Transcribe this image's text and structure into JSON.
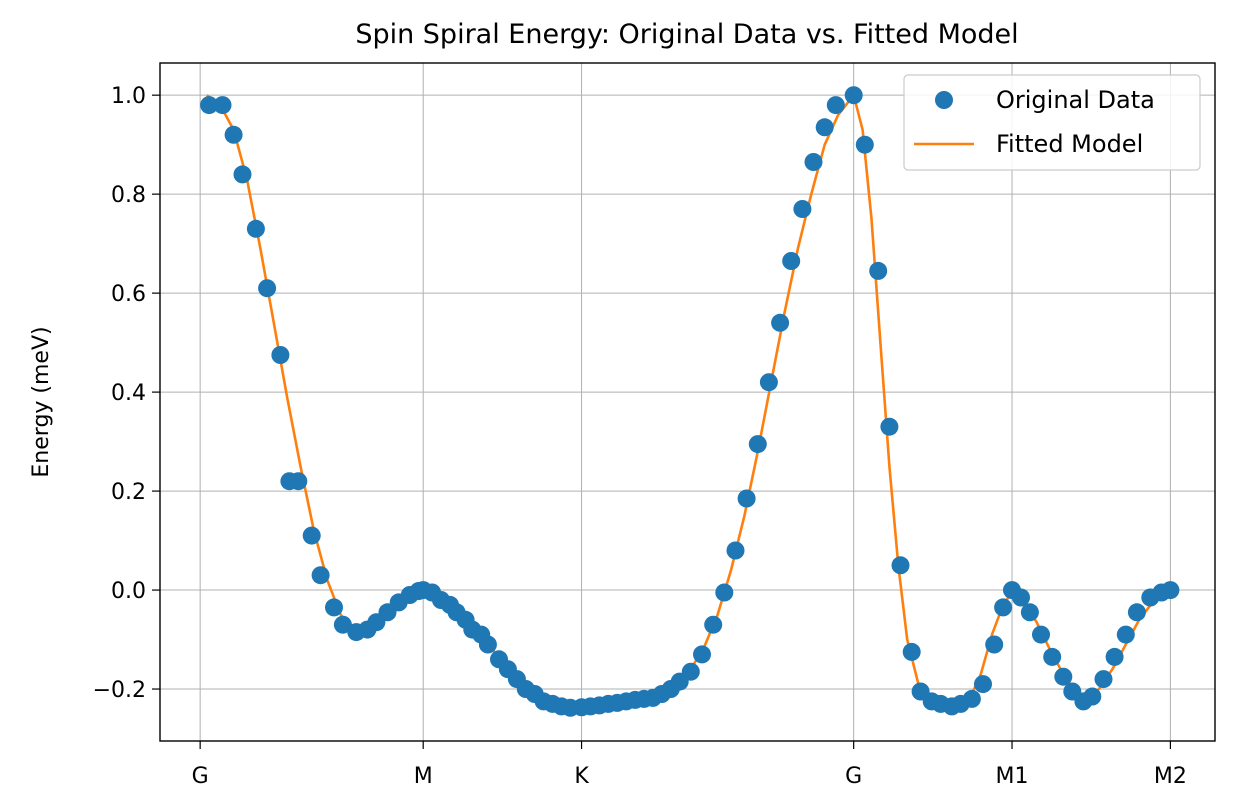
{
  "chart_data": {
    "type": "scatter",
    "title": "Spin Spiral Energy: Original Data vs. Fitted Model",
    "xlabel": "",
    "ylabel": "Energy (meV)",
    "x_ticks": [
      {
        "label": "G",
        "x": 0
      },
      {
        "label": "M",
        "x": 1
      },
      {
        "label": "K",
        "x": 1.71
      },
      {
        "label": "G",
        "x": 2.93
      },
      {
        "label": "M1",
        "x": 3.64
      },
      {
        "label": "M2",
        "x": 4.35
      }
    ],
    "xlim": [
      -0.18,
      4.55
    ],
    "ylim": [
      -0.305,
      1.065
    ],
    "y_ticks": [
      -0.2,
      0.0,
      0.2,
      0.4,
      0.6,
      0.8,
      1.0
    ],
    "y_tick_labels": [
      "−0.2",
      "0.0",
      "0.2",
      "0.4",
      "0.6",
      "0.8",
      "1.0"
    ],
    "grid": true,
    "legend_position": "top-right",
    "colors": {
      "original": "#1f77b4",
      "fitted": "#ff7f0e"
    },
    "series": [
      {
        "name": "Original Data",
        "style": "markers",
        "points": [
          [
            0.04,
            0.98
          ],
          [
            0.1,
            0.98
          ],
          [
            0.15,
            0.92
          ],
          [
            0.19,
            0.84
          ],
          [
            0.25,
            0.73
          ],
          [
            0.3,
            0.61
          ],
          [
            0.36,
            0.475
          ],
          [
            0.4,
            0.22
          ],
          [
            0.44,
            0.22
          ],
          [
            0.5,
            0.11
          ],
          [
            0.54,
            0.03
          ],
          [
            0.6,
            -0.035
          ],
          [
            0.64,
            -0.07
          ],
          [
            0.7,
            -0.085
          ],
          [
            0.75,
            -0.08
          ],
          [
            0.79,
            -0.065
          ],
          [
            0.84,
            -0.045
          ],
          [
            0.89,
            -0.025
          ],
          [
            0.94,
            -0.01
          ],
          [
            0.98,
            -0.002
          ],
          [
            1.0,
            0.0
          ],
          [
            1.04,
            -0.005
          ],
          [
            1.08,
            -0.02
          ],
          [
            1.12,
            -0.03
          ],
          [
            1.15,
            -0.045
          ],
          [
            1.19,
            -0.06
          ],
          [
            1.22,
            -0.08
          ],
          [
            1.26,
            -0.09
          ],
          [
            1.29,
            -0.11
          ],
          [
            1.34,
            -0.14
          ],
          [
            1.38,
            -0.16
          ],
          [
            1.42,
            -0.18
          ],
          [
            1.46,
            -0.2
          ],
          [
            1.5,
            -0.21
          ],
          [
            1.54,
            -0.225
          ],
          [
            1.58,
            -0.23
          ],
          [
            1.62,
            -0.235
          ],
          [
            1.66,
            -0.238
          ],
          [
            1.71,
            -0.237
          ],
          [
            1.75,
            -0.235
          ],
          [
            1.79,
            -0.233
          ],
          [
            1.83,
            -0.23
          ],
          [
            1.87,
            -0.228
          ],
          [
            1.91,
            -0.225
          ],
          [
            1.95,
            -0.222
          ],
          [
            1.99,
            -0.22
          ],
          [
            2.03,
            -0.218
          ],
          [
            2.07,
            -0.21
          ],
          [
            2.11,
            -0.2
          ],
          [
            2.15,
            -0.185
          ],
          [
            2.2,
            -0.165
          ],
          [
            2.25,
            -0.13
          ],
          [
            2.3,
            -0.07
          ],
          [
            2.35,
            -0.005
          ],
          [
            2.4,
            0.08
          ],
          [
            2.45,
            0.185
          ],
          [
            2.5,
            0.295
          ],
          [
            2.55,
            0.42
          ],
          [
            2.6,
            0.54
          ],
          [
            2.65,
            0.665
          ],
          [
            2.7,
            0.77
          ],
          [
            2.75,
            0.865
          ],
          [
            2.8,
            0.935
          ],
          [
            2.85,
            0.98
          ],
          [
            2.93,
            1.0
          ],
          [
            2.98,
            0.9
          ],
          [
            3.04,
            0.645
          ],
          [
            3.09,
            0.33
          ],
          [
            3.14,
            0.05
          ],
          [
            3.19,
            -0.125
          ],
          [
            3.23,
            -0.205
          ],
          [
            3.28,
            -0.225
          ],
          [
            3.32,
            -0.23
          ],
          [
            3.37,
            -0.235
          ],
          [
            3.41,
            -0.23
          ],
          [
            3.46,
            -0.22
          ],
          [
            3.51,
            -0.19
          ],
          [
            3.56,
            -0.11
          ],
          [
            3.6,
            -0.035
          ],
          [
            3.64,
            0.0
          ],
          [
            3.68,
            -0.015
          ],
          [
            3.72,
            -0.045
          ],
          [
            3.77,
            -0.09
          ],
          [
            3.82,
            -0.135
          ],
          [
            3.87,
            -0.175
          ],
          [
            3.91,
            -0.205
          ],
          [
            3.96,
            -0.225
          ],
          [
            4.0,
            -0.215
          ],
          [
            4.05,
            -0.18
          ],
          [
            4.1,
            -0.135
          ],
          [
            4.15,
            -0.09
          ],
          [
            4.2,
            -0.045
          ],
          [
            4.26,
            -0.015
          ],
          [
            4.31,
            -0.005
          ],
          [
            4.35,
            0.0
          ]
        ]
      },
      {
        "name": "Fitted Model",
        "style": "line",
        "points": [
          [
            0.03,
            1.0
          ],
          [
            0.09,
            0.98
          ],
          [
            0.15,
            0.93
          ],
          [
            0.21,
            0.83
          ],
          [
            0.27,
            0.69
          ],
          [
            0.33,
            0.54
          ],
          [
            0.39,
            0.39
          ],
          [
            0.45,
            0.25
          ],
          [
            0.51,
            0.12
          ],
          [
            0.57,
            0.02
          ],
          [
            0.63,
            -0.05
          ],
          [
            0.69,
            -0.08
          ],
          [
            0.75,
            -0.075
          ],
          [
            0.81,
            -0.055
          ],
          [
            0.87,
            -0.03
          ],
          [
            0.93,
            -0.012
          ],
          [
            1.0,
            -0.005
          ],
          [
            1.06,
            -0.012
          ],
          [
            1.12,
            -0.03
          ],
          [
            1.18,
            -0.055
          ],
          [
            1.24,
            -0.085
          ],
          [
            1.3,
            -0.115
          ],
          [
            1.36,
            -0.145
          ],
          [
            1.42,
            -0.175
          ],
          [
            1.48,
            -0.2
          ],
          [
            1.54,
            -0.22
          ],
          [
            1.6,
            -0.232
          ],
          [
            1.66,
            -0.239
          ],
          [
            1.71,
            -0.24
          ],
          [
            1.78,
            -0.237
          ],
          [
            1.86,
            -0.23
          ],
          [
            1.94,
            -0.222
          ],
          [
            2.02,
            -0.215
          ],
          [
            2.08,
            -0.205
          ],
          [
            2.14,
            -0.188
          ],
          [
            2.2,
            -0.16
          ],
          [
            2.26,
            -0.115
          ],
          [
            2.32,
            -0.05
          ],
          [
            2.38,
            0.04
          ],
          [
            2.44,
            0.15
          ],
          [
            2.5,
            0.28
          ],
          [
            2.56,
            0.42
          ],
          [
            2.62,
            0.56
          ],
          [
            2.68,
            0.69
          ],
          [
            2.74,
            0.8
          ],
          [
            2.8,
            0.9
          ],
          [
            2.86,
            0.96
          ],
          [
            2.93,
            1.0
          ],
          [
            2.97,
            0.93
          ],
          [
            3.01,
            0.75
          ],
          [
            3.05,
            0.5
          ],
          [
            3.09,
            0.25
          ],
          [
            3.13,
            0.05
          ],
          [
            3.17,
            -0.1
          ],
          [
            3.22,
            -0.19
          ],
          [
            3.28,
            -0.22
          ],
          [
            3.35,
            -0.235
          ],
          [
            3.4,
            -0.235
          ],
          [
            3.45,
            -0.22
          ],
          [
            3.5,
            -0.17
          ],
          [
            3.55,
            -0.09
          ],
          [
            3.6,
            -0.03
          ],
          [
            3.64,
            -0.005
          ],
          [
            3.69,
            -0.02
          ],
          [
            3.75,
            -0.065
          ],
          [
            3.81,
            -0.12
          ],
          [
            3.87,
            -0.17
          ],
          [
            3.93,
            -0.21
          ],
          [
            3.97,
            -0.22
          ],
          [
            4.03,
            -0.2
          ],
          [
            4.09,
            -0.16
          ],
          [
            4.15,
            -0.11
          ],
          [
            4.21,
            -0.06
          ],
          [
            4.27,
            -0.025
          ],
          [
            4.35,
            0.0
          ]
        ]
      }
    ]
  }
}
